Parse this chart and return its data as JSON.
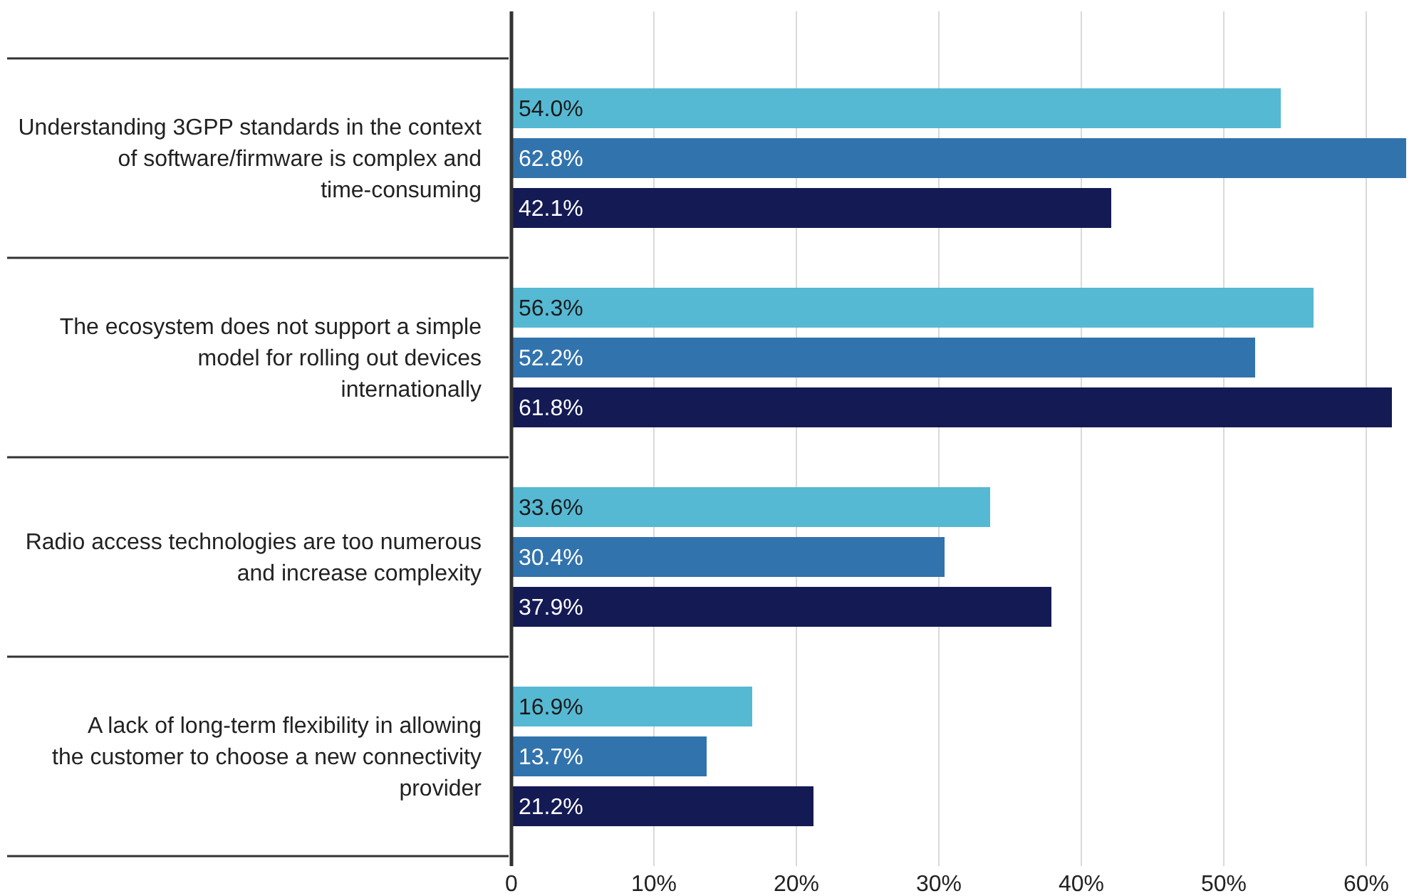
{
  "chart_data": {
    "type": "bar",
    "orientation": "horizontal",
    "categories": [
      "Understanding 3GPP standards in the context of software/firmware is complex and time-consuming",
      "The ecosystem does not support a simple model for rolling out devices internationally",
      "Radio access technologies are too numerous and increase complexity",
      "A lack of long-term flexibility in allowing the customer to choose a new connectivity provider"
    ],
    "series": [
      {
        "color": "#56b9d3",
        "values": [
          54.0,
          56.3,
          33.6,
          16.9
        ],
        "value_labels": [
          "54.0%",
          "56.3%",
          "33.6%",
          "16.9%"
        ]
      },
      {
        "color": "#3173ad",
        "values": [
          62.8,
          52.2,
          30.4,
          13.7
        ],
        "value_labels": [
          "62.8%",
          "52.2%",
          "30.4%",
          "13.7%"
        ]
      },
      {
        "color": "#141a54",
        "values": [
          42.1,
          61.8,
          37.9,
          21.2
        ],
        "value_labels": [
          "42.1%",
          "61.8%",
          "37.9%",
          "21.2%"
        ]
      }
    ],
    "xlim": [
      0,
      63
    ],
    "xticks": [
      0,
      {
        "value": 10,
        "label": "10%"
      },
      {
        "value": 20,
        "label": "20%"
      },
      {
        "value": 30,
        "label": "30%"
      },
      {
        "value": 40,
        "label": "40%"
      },
      {
        "value": 50,
        "label": "50%"
      },
      {
        "value": 60,
        "label": "60%"
      }
    ],
    "grid": "x"
  }
}
